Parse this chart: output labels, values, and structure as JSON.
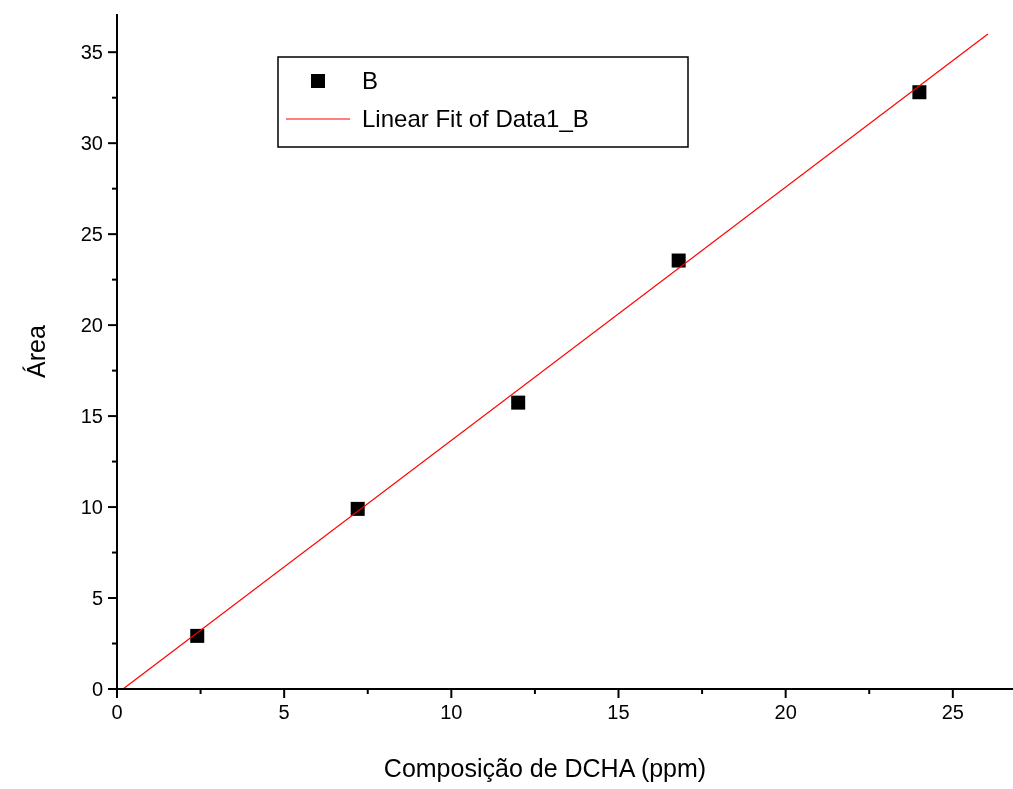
{
  "chart_data": {
    "type": "scatter",
    "xlabel": "Composição de DCHA (ppm)",
    "ylabel": "Área",
    "xlim": [
      0,
      26.8
    ],
    "ylim": [
      0,
      37.1
    ],
    "xticks": [
      0,
      {
        "value": 2.5,
        "label": null
      },
      5,
      {
        "value": 7.5,
        "label": null
      },
      10,
      {
        "value": 12.5,
        "label": null
      },
      15,
      {
        "value": 17.5,
        "label": null
      },
      20,
      {
        "value": 22.5,
        "label": null
      },
      25
    ],
    "yticks": [
      0,
      {
        "value": 2.5,
        "label": null
      },
      5,
      {
        "value": 7.5,
        "label": null
      },
      10,
      {
        "value": 12.5,
        "label": null
      },
      15,
      {
        "value": 17.5,
        "label": null
      },
      20,
      {
        "value": 22.5,
        "label": null
      },
      25,
      {
        "value": 27.5,
        "label": null
      },
      30,
      {
        "value": 32.5,
        "label": null
      },
      35
    ],
    "grid": false,
    "legend": "top left",
    "series": [
      {
        "name": "B",
        "type": "scatter",
        "marker": "square",
        "color": "#000000",
        "x": [
          2.4,
          7.2,
          12,
          16.8,
          24
        ],
        "values": [
          2.92,
          9.9,
          15.74,
          23.55,
          32.8
        ]
      },
      {
        "name": "Linear Fit of Data1_B",
        "type": "line",
        "line_style": "solid",
        "color": "#ff0000",
        "x": [
          0.18,
          26.05
        ],
        "values": [
          0,
          36.0
        ]
      }
    ]
  }
}
